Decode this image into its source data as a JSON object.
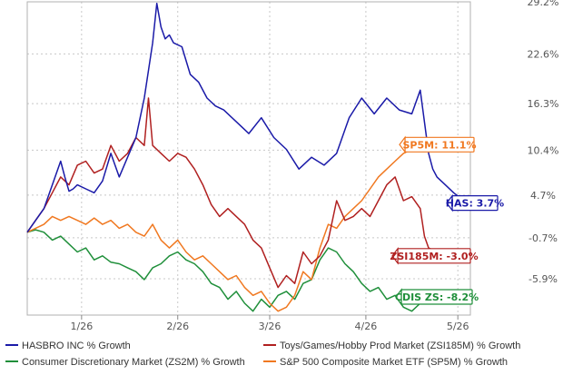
{
  "chart_data": {
    "type": "line",
    "x_ticks": [
      "1/26",
      "2/26",
      "3/26",
      "4/26",
      "5/26"
    ],
    "y_ticks": [
      "29.2%",
      "22.6%",
      "16.3%",
      "10.4%",
      "4.7%",
      "-0.7%",
      "-5.9%"
    ],
    "ylim": [
      -10.5,
      29.2
    ],
    "grid": true,
    "legend_position": "bottom",
    "series": [
      {
        "name": "HASBRO INC % Growth",
        "color": "#1a1aa8",
        "callout": "HAS: 3.7%",
        "x": [
          0,
          2,
          4,
          6,
          8,
          9,
          10,
          11,
          12,
          14,
          16,
          18,
          20,
          22,
          24,
          26,
          28,
          30,
          31,
          32,
          33,
          34,
          35,
          37,
          39,
          41,
          43,
          45,
          47,
          50,
          53,
          56,
          59,
          62,
          65,
          68,
          71,
          74,
          77,
          80,
          83,
          86,
          89,
          92,
          94,
          95,
          96,
          97,
          98,
          100,
          102,
          104,
          106
        ],
        "values": [
          0.0,
          1.5,
          3.0,
          6.0,
          9.0,
          7.0,
          5.2,
          5.5,
          6.0,
          5.5,
          5.0,
          6.5,
          10.0,
          7.0,
          9.5,
          12.0,
          17.0,
          24.0,
          29.0,
          26.0,
          24.5,
          25.0,
          24.0,
          23.5,
          20.0,
          19.0,
          17.0,
          16.0,
          15.5,
          14.0,
          12.5,
          14.5,
          12.0,
          10.5,
          8.0,
          9.5,
          8.5,
          10.0,
          14.5,
          17.0,
          15.0,
          17.0,
          15.5,
          15.0,
          18.0,
          14.0,
          10.0,
          8.0,
          7.0,
          6.0,
          5.0,
          4.2,
          3.7
        ]
      },
      {
        "name": "Toys/Games/Hobby Prod Market (ZSI185M) % Growth",
        "color": "#b02020",
        "callout": "ZSI185M: -3.0%",
        "x": [
          0,
          2,
          4,
          6,
          8,
          10,
          12,
          14,
          16,
          18,
          20,
          22,
          24,
          26,
          28,
          29,
          30,
          32,
          34,
          36,
          38,
          40,
          42,
          44,
          46,
          48,
          50,
          52,
          54,
          56,
          58,
          60,
          62,
          64,
          66,
          68,
          70,
          72,
          74,
          76,
          78,
          80,
          82,
          84,
          86,
          88,
          90,
          92,
          94,
          95,
          96,
          98,
          100,
          102,
          104,
          106
        ],
        "values": [
          0.0,
          1.5,
          3.0,
          5.0,
          7.0,
          6.0,
          8.5,
          9.0,
          7.5,
          8.0,
          11.0,
          9.0,
          10.0,
          12.0,
          11.0,
          17.0,
          11.0,
          10.0,
          9.0,
          10.0,
          9.5,
          8.0,
          6.0,
          3.5,
          2.0,
          3.0,
          2.0,
          1.0,
          -1.0,
          -2.0,
          -4.5,
          -7.0,
          -5.5,
          -6.5,
          -2.5,
          -4.0,
          -3.0,
          -1.0,
          4.0,
          1.5,
          2.0,
          3.0,
          2.0,
          4.0,
          6.0,
          7.0,
          4.0,
          4.5,
          3.0,
          -0.5,
          -2.0,
          -2.5,
          -2.8,
          -3.0,
          -3.0,
          -3.0
        ]
      },
      {
        "name": "Consumer Discretionary Market (ZS2M) % Growth",
        "color": "#1f8f3a",
        "callout": "CDIS ZS: -8.2%",
        "x": [
          0,
          2,
          4,
          6,
          8,
          10,
          12,
          14,
          16,
          18,
          20,
          22,
          24,
          26,
          28,
          30,
          32,
          34,
          36,
          38,
          40,
          42,
          44,
          46,
          48,
          50,
          52,
          54,
          56,
          58,
          60,
          62,
          64,
          66,
          68,
          70,
          72,
          74,
          76,
          78,
          80,
          82,
          84,
          86,
          88,
          90,
          92,
          94,
          96,
          98,
          100,
          102,
          104,
          106
        ],
        "values": [
          0.0,
          0.3,
          0.0,
          -1.0,
          -0.5,
          -1.5,
          -2.5,
          -2.0,
          -3.5,
          -3.0,
          -3.8,
          -4.0,
          -4.5,
          -5.0,
          -6.0,
          -4.5,
          -4.0,
          -3.0,
          -2.5,
          -3.5,
          -4.0,
          -5.0,
          -6.5,
          -7.0,
          -8.5,
          -7.5,
          -9.0,
          -10.0,
          -8.5,
          -9.5,
          -8.0,
          -7.5,
          -8.5,
          -6.5,
          -6.0,
          -3.5,
          -2.0,
          -2.5,
          -4.0,
          -5.0,
          -6.5,
          -7.5,
          -7.0,
          -8.5,
          -8.0,
          -9.5,
          -10.0,
          -9.0,
          -8.0,
          -8.5,
          -8.0,
          -8.2,
          -8.2,
          -8.2
        ]
      },
      {
        "name": "S&P 500 Composite Market ETF (SP5M) % Growth",
        "color": "#f07820",
        "callout": "SP5M: 11.1%",
        "x": [
          0,
          2,
          4,
          6,
          8,
          10,
          12,
          14,
          16,
          18,
          20,
          22,
          24,
          26,
          28,
          30,
          32,
          34,
          36,
          38,
          40,
          42,
          44,
          46,
          48,
          50,
          52,
          54,
          56,
          58,
          60,
          62,
          64,
          66,
          68,
          70,
          72,
          74,
          76,
          78,
          80,
          82,
          84,
          86,
          88,
          90,
          92,
          94,
          96,
          98,
          100,
          102,
          104,
          106
        ],
        "values": [
          0.0,
          0.5,
          1.0,
          2.0,
          1.5,
          2.0,
          1.5,
          1.0,
          1.8,
          1.0,
          1.5,
          0.5,
          1.0,
          0.0,
          -0.5,
          1.0,
          -1.0,
          -2.0,
          -1.0,
          -2.5,
          -3.5,
          -3.0,
          -4.0,
          -5.0,
          -6.0,
          -5.5,
          -7.0,
          -8.0,
          -7.5,
          -9.0,
          -10.0,
          -9.5,
          -8.0,
          -5.0,
          -6.0,
          -2.0,
          1.0,
          0.5,
          2.0,
          3.0,
          4.0,
          5.5,
          7.0,
          8.0,
          9.0,
          10.0,
          10.5,
          11.0,
          10.5,
          11.0,
          11.2,
          11.1,
          11.1,
          11.1
        ]
      }
    ]
  }
}
